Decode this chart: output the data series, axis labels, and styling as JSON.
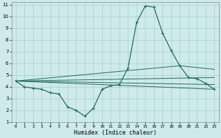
{
  "xlabel": "Humidex (Indice chaleur)",
  "background_color": "#ceeaea",
  "grid_color": "#aacece",
  "line_color": "#1a6b5a",
  "xlim": [
    -0.5,
    23.5
  ],
  "ylim": [
    1,
    11.2
  ],
  "xticks": [
    0,
    1,
    2,
    3,
    4,
    5,
    6,
    7,
    8,
    9,
    10,
    11,
    12,
    13,
    14,
    15,
    16,
    17,
    18,
    19,
    20,
    21,
    22,
    23
  ],
  "yticks": [
    1,
    2,
    3,
    4,
    5,
    6,
    7,
    8,
    9,
    10,
    11
  ],
  "main_series": {
    "x": [
      0,
      1,
      2,
      3,
      4,
      5,
      6,
      7,
      8,
      9,
      10,
      11,
      12,
      13,
      14,
      15,
      16,
      17,
      18,
      19,
      20,
      21,
      22,
      23
    ],
    "y": [
      4.5,
      4.0,
      3.9,
      3.8,
      3.5,
      3.4,
      2.3,
      2.0,
      1.5,
      2.2,
      3.8,
      4.1,
      4.2,
      5.6,
      9.5,
      10.9,
      10.8,
      8.6,
      7.1,
      5.8,
      4.8,
      4.7,
      4.3,
      3.8
    ]
  },
  "trend_lines": [
    {
      "x": [
        0,
        23
      ],
      "y": [
        4.5,
        3.8
      ]
    },
    {
      "x": [
        0,
        23
      ],
      "y": [
        4.5,
        4.2
      ]
    },
    {
      "x": [
        0,
        23
      ],
      "y": [
        4.5,
        4.8
      ]
    },
    {
      "x": [
        0,
        19,
        23
      ],
      "y": [
        4.5,
        5.8,
        5.5
      ]
    }
  ]
}
